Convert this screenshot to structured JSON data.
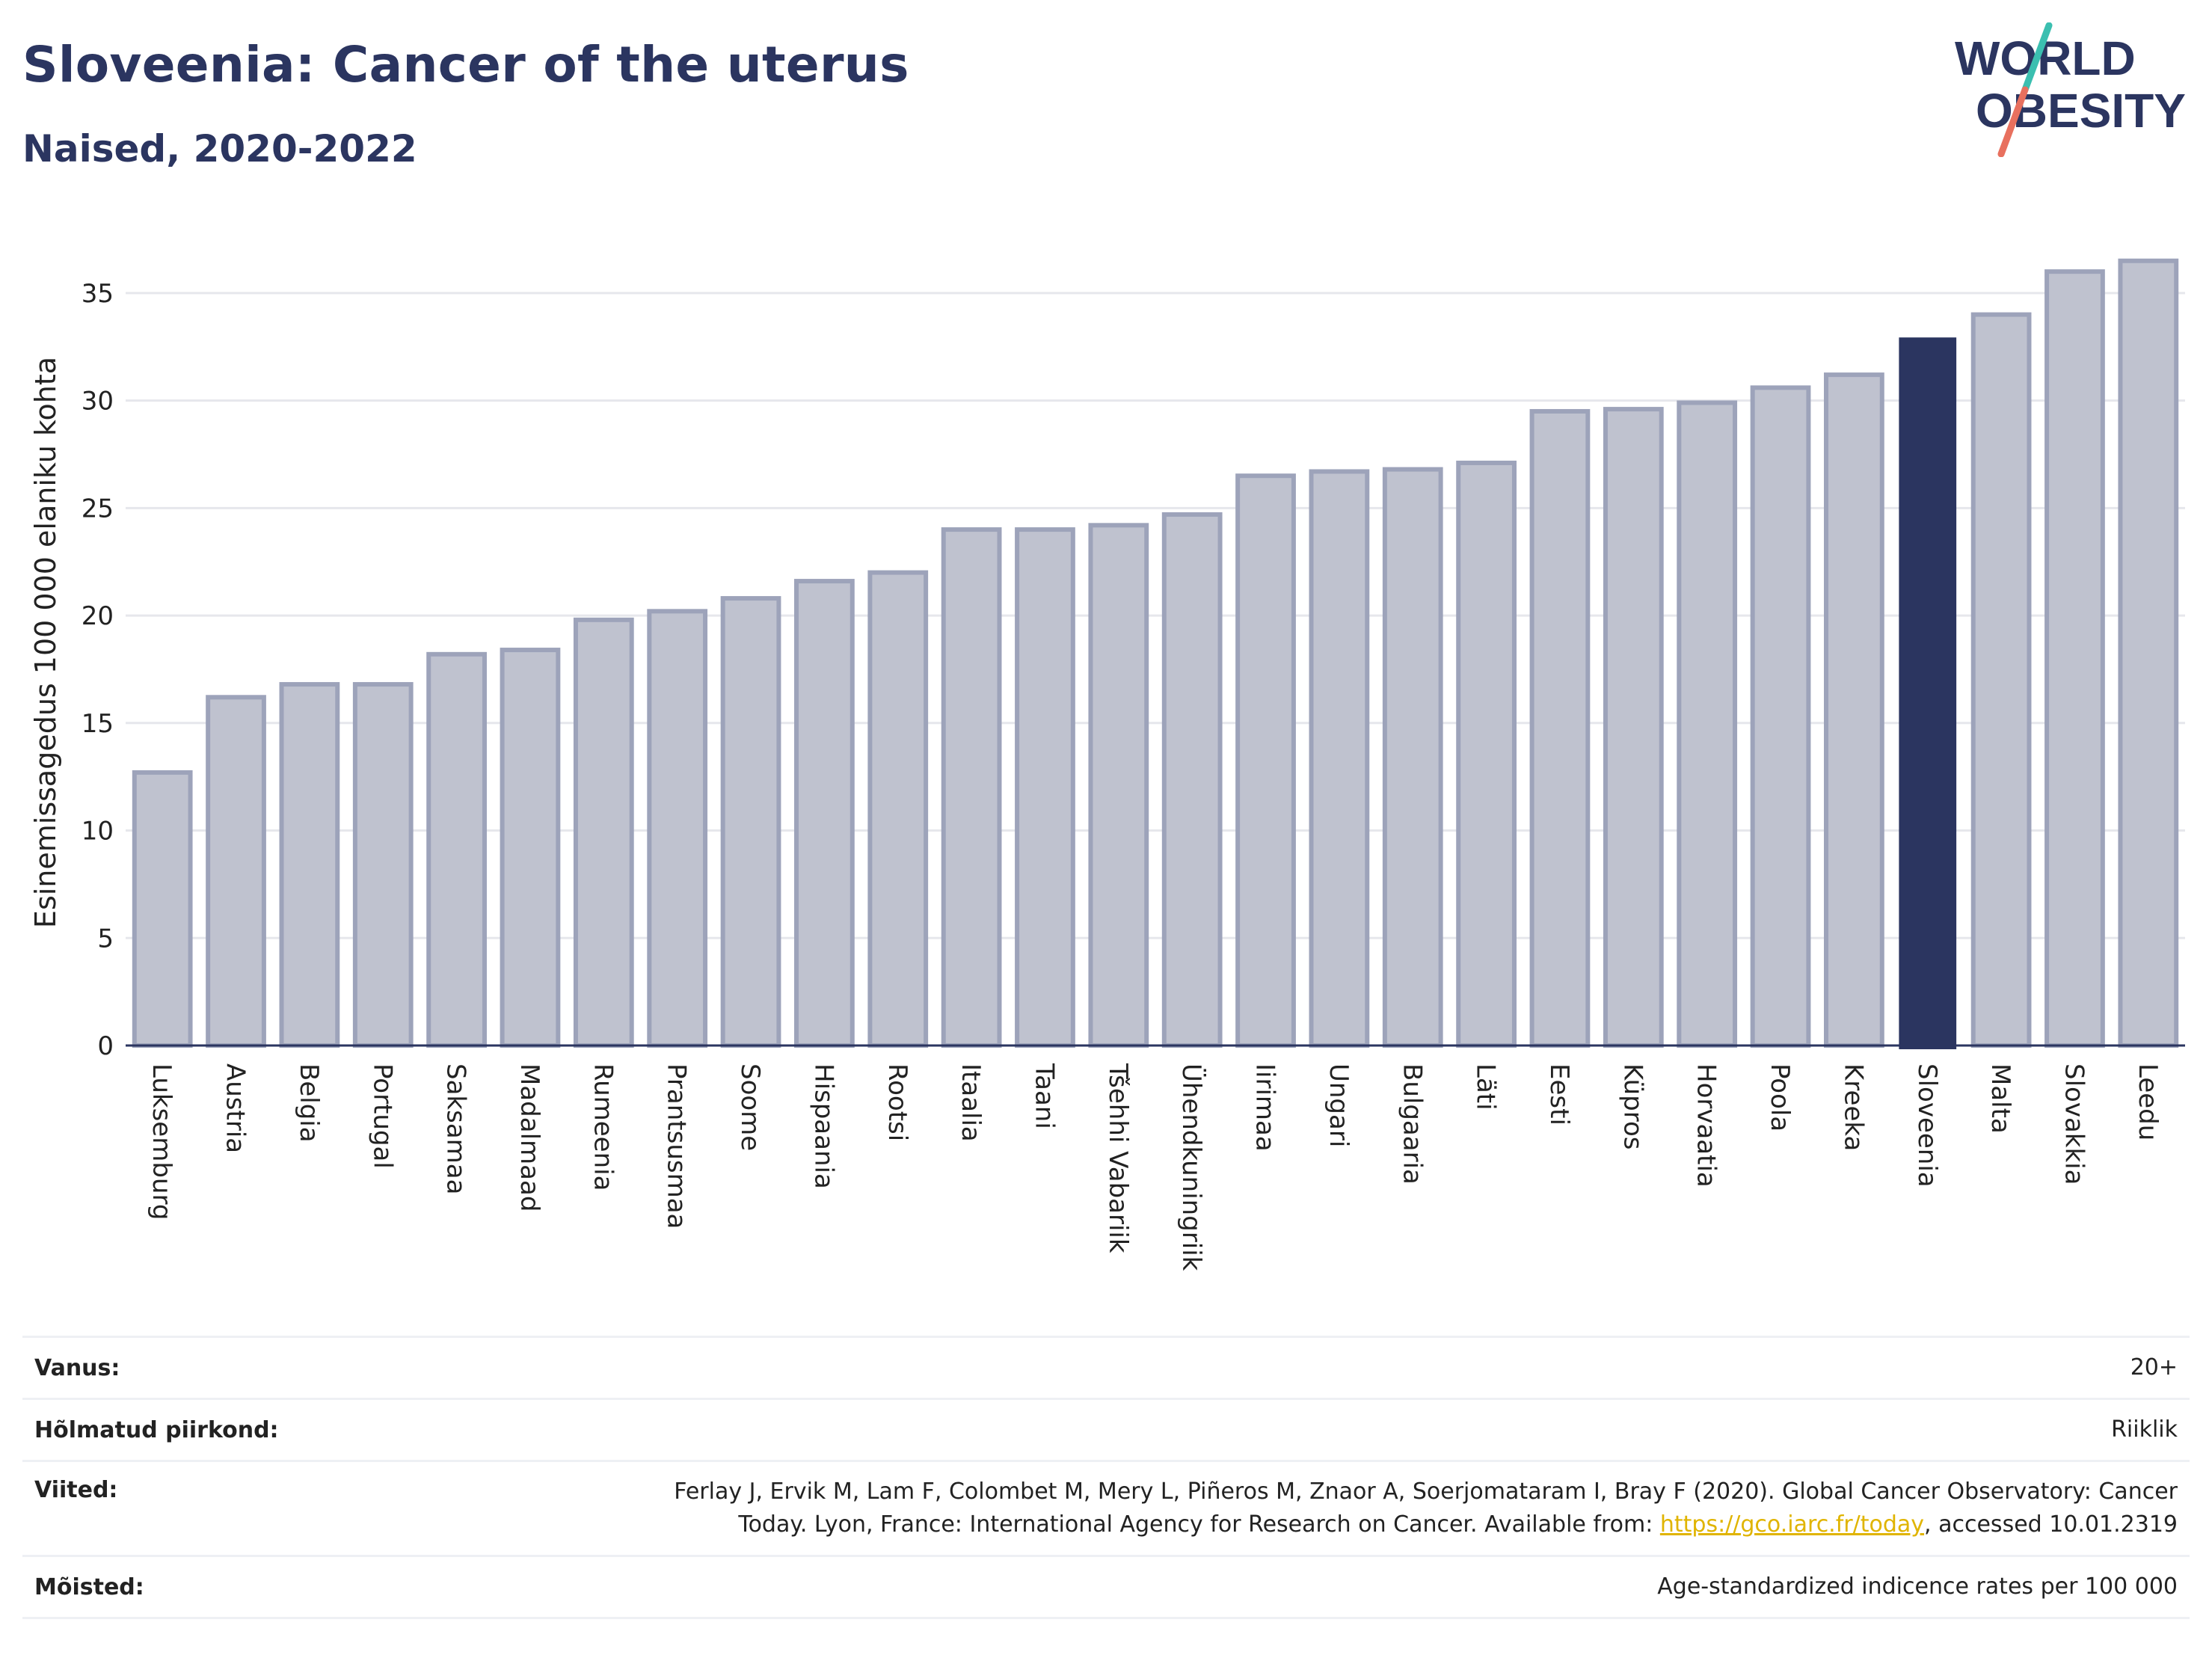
{
  "header": {
    "title": "Sloveenia: Cancer of the uterus",
    "subtitle": "Naised, 2020-2022"
  },
  "logo": {
    "line1": "WORLD",
    "line2": "OBESITY",
    "colors": {
      "text": "#2b3560",
      "slash_teal": "#3bbfb0",
      "slash_coral": "#e8705e"
    }
  },
  "colors": {
    "highlight": "#2b3560",
    "bar_fill": "#bfc2cf",
    "bar_stroke": "#9da3ba",
    "grid": "#e6e7ec",
    "axis": "#2b3560",
    "link": "#e0b400"
  },
  "chart_data": {
    "type": "bar",
    "ylabel": "Esinemissagedus 100 000 elaniku kohta",
    "ylim": [
      0,
      37.5
    ],
    "yticks": [
      0,
      5,
      10,
      15,
      20,
      25,
      30,
      35
    ],
    "grid": true,
    "highlight": "Sloveenia",
    "categories": [
      "Luksemburg",
      "Austria",
      "Belgia",
      "Portugal",
      "Saksamaa",
      "Madalmaad",
      "Rumeenia",
      "Prantsusmaa",
      "Soome",
      "Hispaania",
      "Rootsi",
      "Itaalia",
      "Taani",
      "Tšehhi Vabariik",
      "Ühendkuningriik",
      "Iirimaa",
      "Ungari",
      "Bulgaaria",
      "Läti",
      "Eesti",
      "Küpros",
      "Horvaatia",
      "Poola",
      "Kreeka",
      "Sloveenia",
      "Malta",
      "Slovakkia",
      "Leedu"
    ],
    "values": [
      12.7,
      16.2,
      16.8,
      16.8,
      18.2,
      18.4,
      19.8,
      20.2,
      20.8,
      21.6,
      22.0,
      24.0,
      24.0,
      24.2,
      24.7,
      26.5,
      26.7,
      26.8,
      27.1,
      29.5,
      29.6,
      29.9,
      30.6,
      31.2,
      32.9,
      34.0,
      36.0,
      36.5
    ]
  },
  "meta": {
    "age_label": "Vanus:",
    "age_value": "20+",
    "region_label": "Hõlmatud piirkond:",
    "region_value": "Riiklik",
    "ref_label": "Viited:",
    "ref_line1": "Ferlay J, Ervik M, Lam F, Colombet M, Mery L, Piñeros M, Znaor A, Soerjomataram I, Bray F (2020). Global Cancer Observatory: Cancer",
    "ref_line2_pre": "Today. Lyon, France: International Agency for Research on Cancer. Available from: ",
    "ref_link": "https://gco.iarc.fr/today",
    "ref_line2_post": ", accessed 10.01.2319",
    "def_label": "Mõisted:",
    "def_value": "Age-standardized indicence rates per 100 000"
  }
}
